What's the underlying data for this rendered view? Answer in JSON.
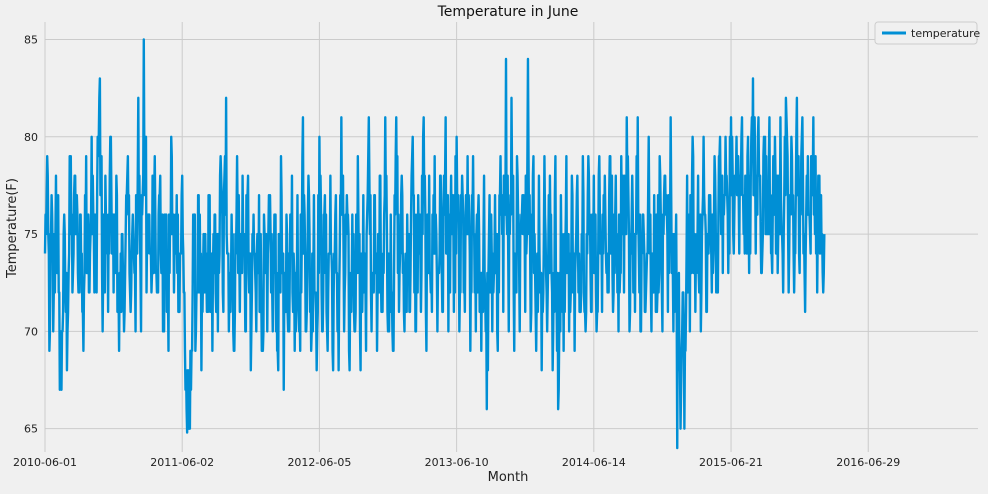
{
  "chart_data": {
    "type": "line",
    "title": "Temperature in June",
    "xlabel": "Month",
    "ylabel": "Temperature(F)",
    "ylim": [
      63.8,
      85.9
    ],
    "ytick_values": [
      65,
      70,
      75,
      80,
      85
    ],
    "xtick_labels": [
      "2010-06-01",
      "2011-06-02",
      "2012-06-05",
      "2013-06-10",
      "2014-06-14",
      "2015-06-21",
      "2016-06-29"
    ],
    "xtick_index": [
      0,
      250,
      500,
      750,
      1000,
      1250,
      1500
    ],
    "x_count": 1700,
    "grid": true,
    "legend": {
      "position": "top-right"
    },
    "series": [
      {
        "name": "temperature",
        "color": "#008fd5",
        "anchors": [
          [
            0,
            74
          ],
          [
            5,
            78
          ],
          [
            8,
            69
          ],
          [
            12,
            77
          ],
          [
            15,
            70
          ],
          [
            20,
            78
          ],
          [
            25,
            72
          ],
          [
            30,
            67
          ],
          [
            35,
            76
          ],
          [
            40,
            68
          ],
          [
            45,
            79
          ],
          [
            50,
            72
          ],
          [
            55,
            78
          ],
          [
            60,
            73
          ],
          [
            65,
            76
          ],
          [
            70,
            69
          ],
          [
            75,
            79
          ],
          [
            80,
            72
          ],
          [
            85,
            80
          ],
          [
            90,
            72
          ],
          [
            95,
            77
          ],
          [
            100,
            83
          ],
          [
            105,
            70
          ],
          [
            110,
            78
          ],
          [
            115,
            71
          ],
          [
            120,
            80
          ],
          [
            125,
            72
          ],
          [
            130,
            78
          ],
          [
            135,
            69
          ],
          [
            140,
            75
          ],
          [
            145,
            71
          ],
          [
            150,
            78
          ],
          [
            155,
            72
          ],
          [
            160,
            76
          ],
          [
            165,
            70
          ],
          [
            170,
            82
          ],
          [
            175,
            70
          ],
          [
            180,
            85
          ],
          [
            185,
            72
          ],
          [
            190,
            76
          ],
          [
            195,
            73
          ],
          [
            200,
            79
          ],
          [
            205,
            72
          ],
          [
            210,
            78
          ],
          [
            215,
            70
          ],
          [
            220,
            76
          ],
          [
            225,
            69
          ],
          [
            230,
            80
          ],
          [
            235,
            72
          ],
          [
            240,
            77
          ],
          [
            245,
            71
          ],
          [
            250,
            78
          ],
          [
            255,
            69
          ],
          [
            258,
            66
          ],
          [
            262,
            65
          ],
          [
            266,
            67
          ],
          [
            270,
            76
          ],
          [
            275,
            70
          ],
          [
            280,
            77
          ],
          [
            285,
            68
          ],
          [
            290,
            75
          ],
          [
            295,
            71
          ],
          [
            300,
            77
          ],
          [
            305,
            69
          ],
          [
            310,
            76
          ],
          [
            315,
            70
          ],
          [
            320,
            79
          ],
          [
            325,
            71
          ],
          [
            330,
            82
          ],
          [
            335,
            70
          ],
          [
            340,
            76
          ],
          [
            345,
            69
          ],
          [
            350,
            79
          ],
          [
            355,
            71
          ],
          [
            360,
            78
          ],
          [
            365,
            70
          ],
          [
            370,
            78
          ],
          [
            375,
            68
          ],
          [
            380,
            76
          ],
          [
            385,
            70
          ],
          [
            390,
            77
          ],
          [
            395,
            69
          ],
          [
            400,
            75
          ],
          [
            405,
            70
          ],
          [
            410,
            77
          ],
          [
            415,
            70
          ],
          [
            420,
            76
          ],
          [
            425,
            68
          ],
          [
            430,
            79
          ],
          [
            435,
            67
          ],
          [
            440,
            76
          ],
          [
            445,
            70
          ],
          [
            450,
            78
          ],
          [
            455,
            69
          ],
          [
            460,
            77
          ],
          [
            465,
            69
          ],
          [
            470,
            81
          ],
          [
            475,
            70
          ],
          [
            480,
            78
          ],
          [
            485,
            69
          ],
          [
            490,
            77
          ],
          [
            495,
            68
          ],
          [
            500,
            80
          ],
          [
            505,
            70
          ],
          [
            510,
            77
          ],
          [
            515,
            69
          ],
          [
            520,
            78
          ],
          [
            525,
            68
          ],
          [
            530,
            77
          ],
          [
            535,
            68
          ],
          [
            540,
            81
          ],
          [
            545,
            70
          ],
          [
            550,
            77
          ],
          [
            555,
            68
          ],
          [
            560,
            76
          ],
          [
            565,
            70
          ],
          [
            570,
            79
          ],
          [
            575,
            68
          ],
          [
            580,
            77
          ],
          [
            585,
            69
          ],
          [
            590,
            81
          ],
          [
            595,
            70
          ],
          [
            600,
            77
          ],
          [
            605,
            69
          ],
          [
            610,
            78
          ],
          [
            615,
            71
          ],
          [
            620,
            81
          ],
          [
            625,
            70
          ],
          [
            630,
            76
          ],
          [
            635,
            69
          ],
          [
            640,
            81
          ],
          [
            645,
            71
          ],
          [
            650,
            78
          ],
          [
            655,
            70
          ],
          [
            660,
            76
          ],
          [
            665,
            71
          ],
          [
            670,
            80
          ],
          [
            675,
            70
          ],
          [
            680,
            77
          ],
          [
            685,
            71
          ],
          [
            690,
            81
          ],
          [
            695,
            69
          ],
          [
            700,
            78
          ],
          [
            705,
            71
          ],
          [
            710,
            79
          ],
          [
            715,
            70
          ],
          [
            720,
            78
          ],
          [
            725,
            71
          ],
          [
            730,
            81
          ],
          [
            735,
            70
          ],
          [
            740,
            78
          ],
          [
            745,
            71
          ],
          [
            750,
            80
          ],
          [
            755,
            70
          ],
          [
            760,
            78
          ],
          [
            765,
            71
          ],
          [
            770,
            79
          ],
          [
            775,
            69
          ],
          [
            780,
            79
          ],
          [
            785,
            70
          ],
          [
            790,
            77
          ],
          [
            795,
            69
          ],
          [
            800,
            78
          ],
          [
            805,
            66
          ],
          [
            810,
            77
          ],
          [
            815,
            70
          ],
          [
            820,
            77
          ],
          [
            825,
            69
          ],
          [
            830,
            79
          ],
          [
            835,
            71
          ],
          [
            840,
            84
          ],
          [
            845,
            70
          ],
          [
            850,
            82
          ],
          [
            855,
            69
          ],
          [
            860,
            79
          ],
          [
            865,
            70
          ],
          [
            870,
            77
          ],
          [
            875,
            71
          ],
          [
            880,
            84
          ],
          [
            885,
            70
          ],
          [
            890,
            79
          ],
          [
            895,
            69
          ],
          [
            900,
            78
          ],
          [
            905,
            68
          ],
          [
            910,
            79
          ],
          [
            915,
            70
          ],
          [
            920,
            78
          ],
          [
            925,
            68
          ],
          [
            930,
            79
          ],
          [
            935,
            66
          ],
          [
            940,
            77
          ],
          [
            945,
            69
          ],
          [
            950,
            79
          ],
          [
            955,
            70
          ],
          [
            960,
            78
          ],
          [
            965,
            69
          ],
          [
            970,
            78
          ],
          [
            975,
            71
          ],
          [
            980,
            79
          ],
          [
            985,
            70
          ],
          [
            990,
            79
          ],
          [
            995,
            71
          ],
          [
            1000,
            78
          ],
          [
            1005,
            70
          ],
          [
            1010,
            79
          ],
          [
            1015,
            71
          ],
          [
            1020,
            78
          ],
          [
            1025,
            72
          ],
          [
            1030,
            79
          ],
          [
            1035,
            71
          ],
          [
            1040,
            78
          ],
          [
            1045,
            70
          ],
          [
            1050,
            79
          ],
          [
            1055,
            72
          ],
          [
            1060,
            81
          ],
          [
            1065,
            70
          ],
          [
            1070,
            78
          ],
          [
            1075,
            71
          ],
          [
            1080,
            81
          ],
          [
            1085,
            70
          ],
          [
            1090,
            76
          ],
          [
            1095,
            72
          ],
          [
            1100,
            80
          ],
          [
            1105,
            70
          ],
          [
            1110,
            77
          ],
          [
            1115,
            71
          ],
          [
            1120,
            79
          ],
          [
            1125,
            70
          ],
          [
            1130,
            78
          ],
          [
            1135,
            71
          ],
          [
            1140,
            81
          ],
          [
            1145,
            70
          ],
          [
            1150,
            76
          ],
          [
            1152,
            64
          ],
          [
            1155,
            73
          ],
          [
            1158,
            65
          ],
          [
            1162,
            72
          ],
          [
            1165,
            65
          ],
          [
            1170,
            78
          ],
          [
            1175,
            70
          ],
          [
            1180,
            80
          ],
          [
            1185,
            71
          ],
          [
            1190,
            78
          ],
          [
            1195,
            70
          ],
          [
            1200,
            80
          ],
          [
            1205,
            71
          ],
          [
            1210,
            77
          ],
          [
            1215,
            72
          ],
          [
            1220,
            79
          ],
          [
            1225,
            72
          ],
          [
            1230,
            80
          ],
          [
            1235,
            73
          ],
          [
            1240,
            80
          ],
          [
            1245,
            73
          ],
          [
            1250,
            81
          ],
          [
            1255,
            74
          ],
          [
            1260,
            80
          ],
          [
            1265,
            74
          ],
          [
            1270,
            81
          ],
          [
            1275,
            74
          ],
          [
            1280,
            79
          ],
          [
            1285,
            74
          ],
          [
            1290,
            83
          ],
          [
            1295,
            74
          ],
          [
            1300,
            81
          ],
          [
            1305,
            73
          ],
          [
            1310,
            80
          ],
          [
            1315,
            75
          ],
          [
            1320,
            81
          ],
          [
            1325,
            73
          ],
          [
            1330,
            80
          ],
          [
            1335,
            73
          ],
          [
            1340,
            81
          ],
          [
            1345,
            72
          ],
          [
            1350,
            82
          ],
          [
            1355,
            72
          ],
          [
            1360,
            80
          ],
          [
            1365,
            72
          ],
          [
            1370,
            82
          ],
          [
            1375,
            73
          ],
          [
            1380,
            81
          ],
          [
            1385,
            71
          ],
          [
            1390,
            79
          ],
          [
            1395,
            74
          ],
          [
            1400,
            81
          ],
          [
            1405,
            74
          ],
          [
            1410,
            76
          ],
          [
            1415,
            74
          ],
          [
            1420,
            75
          ]
        ]
      }
    ]
  }
}
